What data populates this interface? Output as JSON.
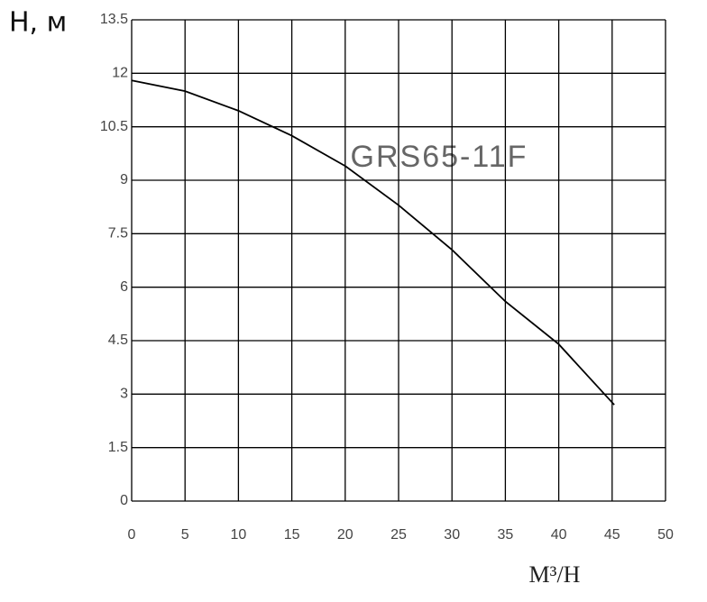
{
  "chart_data": {
    "type": "line",
    "y_label": "H, м",
    "x_label": "M³/H",
    "annotation": "GRS65-11F",
    "x": [
      0,
      5,
      10,
      15,
      20,
      25,
      30,
      35,
      40,
      45.2
    ],
    "values": [
      11.8,
      11.5,
      10.95,
      10.25,
      9.4,
      8.3,
      7.05,
      5.6,
      4.4,
      2.7
    ],
    "color": "#000000",
    "xlim": [
      0,
      50
    ],
    "xticks": [
      0,
      5,
      10,
      15,
      20,
      25,
      30,
      35,
      40,
      45,
      50
    ],
    "ylim": [
      0,
      13.5
    ],
    "yticks": [
      0,
      1.5,
      3,
      4.5,
      6,
      7.5,
      9,
      10.5,
      12,
      13.5
    ],
    "grid": true
  }
}
